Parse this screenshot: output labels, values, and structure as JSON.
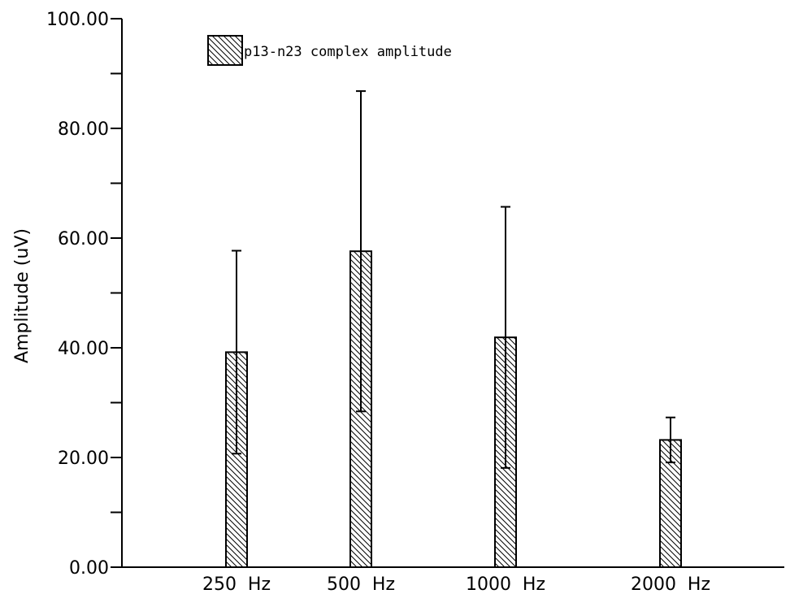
{
  "chart_data": {
    "type": "bar",
    "title": "",
    "xlabel": "",
    "ylabel": "Amplitude (uV)",
    "categories": [
      "250  Hz",
      "500  Hz",
      "1000  Hz",
      "2000  Hz"
    ],
    "series": [
      {
        "name": "p13-n23 complex amplitude",
        "values": [
          39.2,
          57.6,
          41.9,
          23.2
        ],
        "error": [
          18.5,
          29.2,
          23.8,
          4.1
        ]
      }
    ],
    "ylim": [
      0,
      100
    ],
    "yticks": [
      0,
      20,
      40,
      60,
      80,
      100
    ],
    "ytick_labels": [
      "0.00",
      "20.00",
      "40.00",
      "60.00",
      "80.00",
      "100.00"
    ],
    "yminor_step": 10,
    "grid": false,
    "legend_position": "top-left",
    "bar_fill": "hatched-diagonal",
    "colors": {
      "stroke": "#000000",
      "background": "#ffffff"
    }
  }
}
